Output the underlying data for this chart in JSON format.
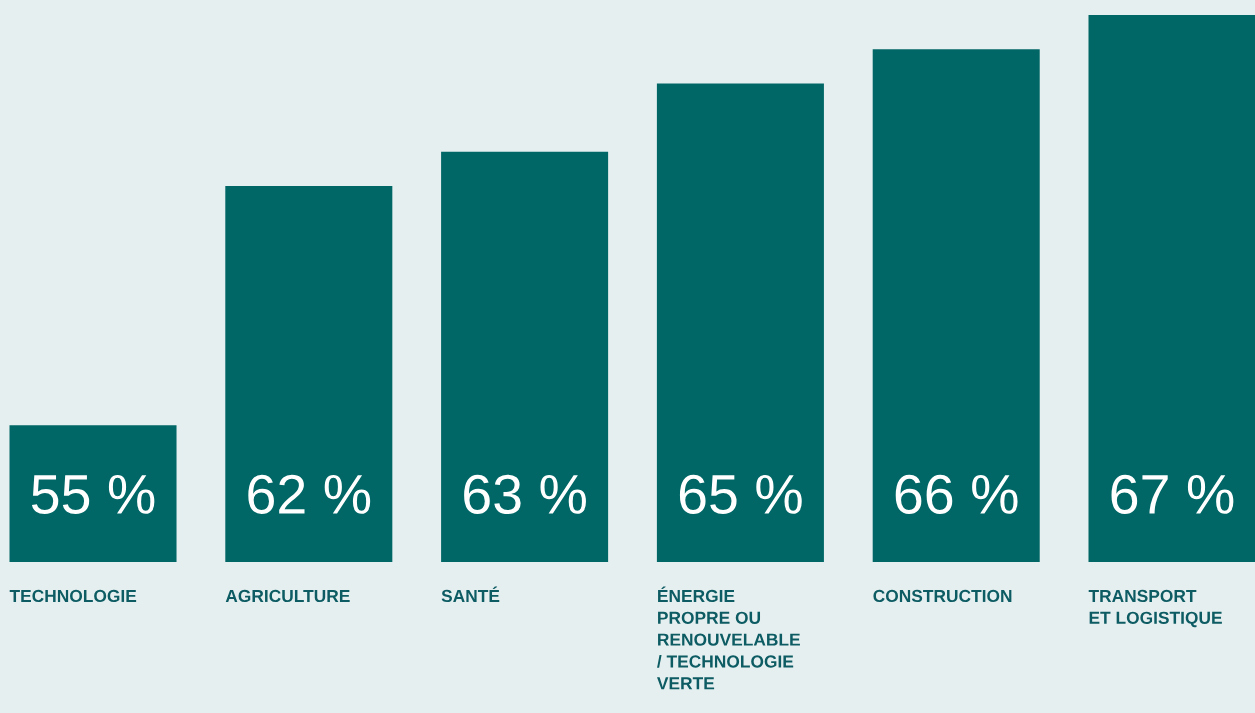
{
  "chart_data": {
    "type": "bar",
    "categories": [
      "TECHNOLOGIE",
      "AGRICULTURE",
      "SANTÉ",
      "ÉNERGIE\nPROPRE OU\nRENOUVELABLE\n/ TECHNOLOGIE\nVERTE",
      "CONSTRUCTION",
      "TRANSPORT\nET LOGISTIQUE"
    ],
    "values": [
      55,
      62,
      63,
      65,
      66,
      67
    ],
    "value_labels": [
      "55 %",
      "62 %",
      "63 %",
      "65 %",
      "66 %",
      "67 %"
    ],
    "color": "#006766",
    "ylim": [
      51,
      67
    ]
  }
}
